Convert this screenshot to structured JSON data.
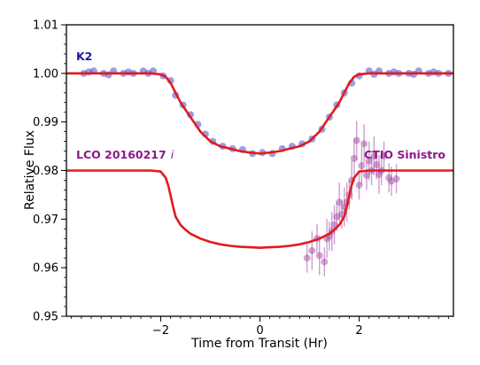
{
  "chart_data": {
    "type": "scatter",
    "title": "",
    "xlabel": "Time from Transit (Hr)",
    "ylabel": "Relative Flux",
    "xlim": [
      -3.9,
      3.9
    ],
    "ylim": [
      0.95,
      1.01
    ],
    "xticks": [
      -2,
      0,
      2
    ],
    "xtick_labels": [
      "−2",
      "0",
      "2"
    ],
    "yticks": [
      0.95,
      0.96,
      0.97,
      0.98,
      0.99,
      1.0,
      1.01
    ],
    "ytick_labels": [
      "0.95",
      "0.96",
      "0.97",
      "0.98",
      "0.99",
      "1.00",
      "1.01"
    ],
    "grid": false,
    "annotations": {
      "k2": "K2",
      "lco_text": "LCO 20160217",
      "lco_filter": "i",
      "ctio": "CTIO Sinistro"
    },
    "colors": {
      "model": "#e31a1c",
      "k2_points": "#3b3bc9",
      "k2_label": "#1a1a9c",
      "ground_points": "#a64ca6",
      "ground_label": "#8b1a8b"
    },
    "series": [
      {
        "kind": "points",
        "x": [
          -3.55,
          -3.35,
          -3.15,
          -2.95,
          -2.75,
          -2.55,
          -2.35,
          -2.15,
          -1.95,
          -1.8,
          -1.7,
          -1.55,
          -1.4,
          -1.25,
          -1.1,
          -0.95,
          -0.75,
          -0.55,
          -0.35,
          -0.15,
          0.05,
          0.25,
          0.45,
          0.65,
          0.85,
          1.05,
          1.25,
          1.4,
          1.55,
          1.7,
          1.85,
          2.0,
          2.2,
          2.4,
          2.6,
          2.8,
          3.0,
          3.2,
          3.4,
          3.6,
          3.8,
          -3.45,
          -3.05,
          -2.65,
          -2.25,
          2.3,
          2.7,
          3.1,
          3.5
        ],
        "y": [
          1.0,
          1.0005,
          1.0,
          1.0005,
          1.0,
          1.0,
          1.0005,
          1.0005,
          0.9995,
          0.9985,
          0.9955,
          0.9935,
          0.9915,
          0.9895,
          0.9875,
          0.986,
          0.985,
          0.9845,
          0.9843,
          0.9835,
          0.9837,
          0.9835,
          0.9845,
          0.985,
          0.9855,
          0.9865,
          0.9885,
          0.991,
          0.9935,
          0.996,
          0.998,
          0.9995,
          1.0005,
          1.0005,
          1.0,
          1.0,
          1.0,
          1.0005,
          1.0,
          1.0,
          1.0,
          1.0003,
          0.9997,
          1.0003,
          1.0,
          0.9998,
          1.0003,
          0.9998,
          1.0003
        ]
      },
      {
        "kind": "line",
        "x": [
          -3.9,
          -3.0,
          -2.2,
          -2.0,
          -1.9,
          -1.8,
          -1.7,
          -1.6,
          -1.5,
          -1.4,
          -1.3,
          -1.2,
          -1.1,
          -1.0,
          -0.8,
          -0.6,
          -0.4,
          -0.2,
          0.0,
          0.2,
          0.4,
          0.6,
          0.8,
          1.0,
          1.1,
          1.2,
          1.3,
          1.4,
          1.5,
          1.6,
          1.7,
          1.8,
          1.9,
          2.0,
          2.2,
          3.0,
          3.9
        ],
        "y": [
          1.0,
          1.0,
          1.0,
          0.9998,
          0.9993,
          0.998,
          0.996,
          0.994,
          0.9925,
          0.991,
          0.9895,
          0.988,
          0.987,
          0.986,
          0.985,
          0.9845,
          0.984,
          0.9837,
          0.9835,
          0.9837,
          0.984,
          0.9845,
          0.985,
          0.986,
          0.987,
          0.988,
          0.9895,
          0.991,
          0.9925,
          0.994,
          0.996,
          0.998,
          0.9993,
          0.9998,
          1.0,
          1.0,
          1.0
        ]
      },
      {
        "kind": "line",
        "x": [
          -3.9,
          -2.2,
          -2.0,
          -1.9,
          -1.85,
          -1.8,
          -1.75,
          -1.7,
          -1.6,
          -1.5,
          -1.4,
          -1.2,
          -1.0,
          -0.8,
          -0.6,
          -0.4,
          -0.2,
          0.0,
          0.2,
          0.4,
          0.6,
          0.8,
          1.0,
          1.2,
          1.4,
          1.5,
          1.6,
          1.7,
          1.75,
          1.8,
          1.85,
          1.9,
          2.0,
          2.2,
          3.9
        ],
        "y": [
          0.98,
          0.98,
          0.9798,
          0.9785,
          0.977,
          0.9748,
          0.9725,
          0.9705,
          0.9688,
          0.9678,
          0.967,
          0.966,
          0.9653,
          0.9648,
          0.9645,
          0.9643,
          0.9642,
          0.9641,
          0.9642,
          0.9643,
          0.9645,
          0.9648,
          0.9653,
          0.966,
          0.967,
          0.9678,
          0.9688,
          0.9705,
          0.9725,
          0.9748,
          0.977,
          0.9785,
          0.9798,
          0.98,
          0.98
        ]
      },
      {
        "kind": "points_with_errors",
        "x": [
          0.95,
          1.05,
          1.15,
          1.2,
          1.3,
          1.35,
          1.4,
          1.45,
          1.5,
          1.55,
          1.6,
          1.65,
          1.7,
          1.75,
          1.8,
          1.85,
          1.9,
          1.95,
          2.0,
          2.05,
          2.1,
          2.15,
          2.2,
          2.25,
          2.3,
          2.35,
          2.4,
          2.45,
          2.5,
          2.6,
          2.65,
          2.75
        ],
        "y": [
          0.962,
          0.9635,
          0.966,
          0.9625,
          0.9612,
          0.966,
          0.9665,
          0.9675,
          0.9688,
          0.9705,
          0.9735,
          0.971,
          0.9725,
          0.9735,
          0.975,
          0.978,
          0.9825,
          0.9862,
          0.977,
          0.981,
          0.9855,
          0.979,
          0.982,
          0.98,
          0.983,
          0.9812,
          0.9792,
          0.98,
          0.983,
          0.9785,
          0.9778,
          0.9783
        ],
        "err": [
          0.003,
          0.004,
          0.003,
          0.004,
          0.003,
          0.004,
          0.003,
          0.004,
          0.004,
          0.003,
          0.004,
          0.003,
          0.004,
          0.004,
          0.003,
          0.004,
          0.004,
          0.004,
          0.003,
          0.004,
          0.004,
          0.003,
          0.004,
          0.003,
          0.004,
          0.003,
          0.004,
          0.003,
          0.003,
          0.003,
          0.003,
          0.003
        ]
      }
    ]
  }
}
